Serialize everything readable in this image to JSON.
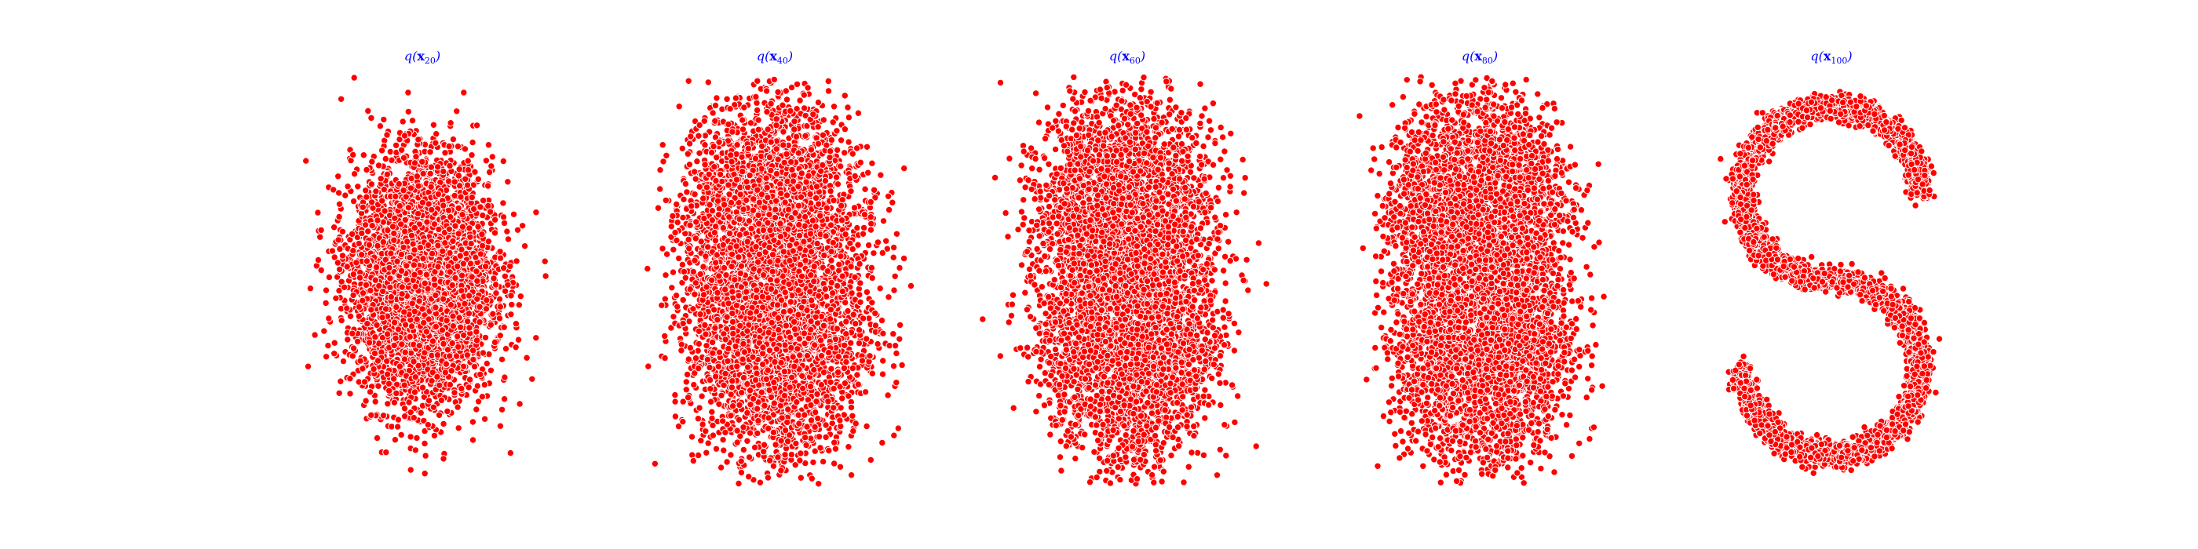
{
  "chart_data": [
    {
      "type": "scatter",
      "title": {
        "fn": "q",
        "var": "x",
        "sub": "20"
      },
      "point_color": "#ff0000",
      "edge_color": "#ffffff",
      "axes_visible": false,
      "grid": false,
      "n_points": 5000,
      "shape": "gaussian",
      "xlim": [
        -2.6,
        2.6
      ],
      "ylim": [
        -3.4,
        3.4
      ],
      "spread": [
        0.6,
        0.95
      ]
    },
    {
      "type": "scatter",
      "title": {
        "fn": "q",
        "var": "x",
        "sub": "40"
      },
      "point_color": "#ff0000",
      "edge_color": "#ffffff",
      "axes_visible": false,
      "grid": false,
      "n_points": 5000,
      "shape": "blob",
      "xlim": [
        -2.6,
        2.6
      ],
      "ylim": [
        -3.4,
        3.4
      ],
      "spread": [
        0.55,
        0.85
      ]
    },
    {
      "type": "scatter",
      "title": {
        "fn": "q",
        "var": "x",
        "sub": "60"
      },
      "point_color": "#ff0000",
      "edge_color": "#ffffff",
      "axes_visible": false,
      "grid": false,
      "n_points": 5000,
      "shape": "blob",
      "xlim": [
        -2.6,
        2.6
      ],
      "ylim": [
        -3.4,
        3.4
      ],
      "spread": [
        0.5,
        0.8
      ]
    },
    {
      "type": "scatter",
      "title": {
        "fn": "q",
        "var": "x",
        "sub": "80"
      },
      "point_color": "#ff0000",
      "edge_color": "#ffffff",
      "axes_visible": false,
      "grid": false,
      "n_points": 5000,
      "shape": "blob",
      "xlim": [
        -2.6,
        2.6
      ],
      "ylim": [
        -3.4,
        3.4
      ],
      "spread": [
        0.42,
        0.72
      ]
    },
    {
      "type": "scatter",
      "title": {
        "fn": "q",
        "var": "x",
        "sub": "100"
      },
      "point_color": "#ff0000",
      "edge_color": "#ffffff",
      "axes_visible": false,
      "grid": false,
      "n_points": 5000,
      "shape": "s_curve",
      "xlim": [
        -2.6,
        2.6
      ],
      "ylim": [
        -3.4,
        3.4
      ],
      "spread": [
        0.1,
        0.1
      ]
    }
  ]
}
